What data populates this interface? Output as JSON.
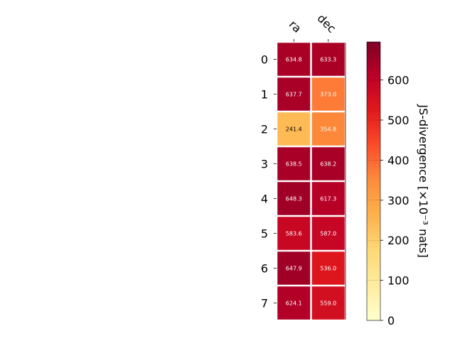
{
  "chart_data": {
    "type": "heatmap",
    "columns": [
      "ra",
      "dec"
    ],
    "rows": [
      "0",
      "1",
      "2",
      "3",
      "4",
      "5",
      "6",
      "7"
    ],
    "values": [
      [
        634.8,
        633.3
      ],
      [
        637.7,
        373.0
      ],
      [
        241.4,
        354.8
      ],
      [
        638.5,
        638.2
      ],
      [
        648.3,
        617.3
      ],
      [
        583.6,
        587.0
      ],
      [
        647.9,
        536.0
      ],
      [
        624.1,
        559.0
      ]
    ],
    "value_labels": [
      [
        "634.8",
        "633.3"
      ],
      [
        "637.7",
        "373.0"
      ],
      [
        "241.4",
        "354.8"
      ],
      [
        "638.5",
        "638.2"
      ],
      [
        "648.3",
        "617.3"
      ],
      [
        "583.6",
        "587.0"
      ],
      [
        "647.9",
        "536.0"
      ],
      [
        "624.1",
        "559.0"
      ]
    ],
    "colorbar": {
      "label": "JS-divergence [×10⁻³ nats]",
      "range": [
        0,
        695
      ],
      "ticks": [
        0,
        100,
        200,
        300,
        400,
        500,
        600
      ],
      "tick_labels": [
        "0",
        "100",
        "200",
        "300",
        "400",
        "500",
        "600"
      ],
      "colormap": "YlOrRd"
    },
    "title": "",
    "xlabel": "",
    "ylabel": ""
  }
}
